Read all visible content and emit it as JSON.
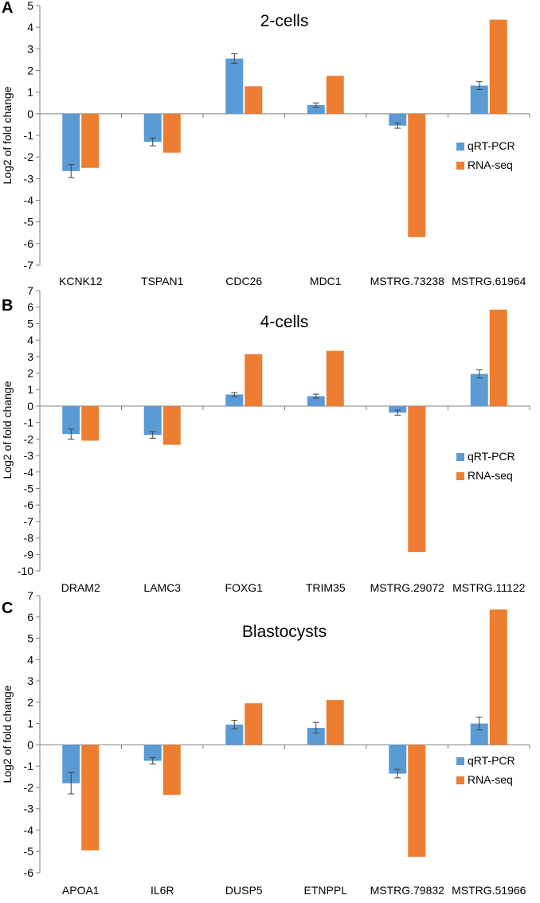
{
  "figure_name": "qRT-PCR vs RNA-seq validation",
  "colors": {
    "qrt": "#5b9bd5",
    "rna": "#ed7d31",
    "axis": "#7f7f7f",
    "err": "#404040"
  },
  "chart_data": [
    {
      "panel": "A",
      "type": "bar",
      "title": "2-cells",
      "ylabel": "Log2 of fold change",
      "ylim": [
        -7,
        5
      ],
      "yticks": [
        "-7",
        "-6",
        "-5",
        "-4",
        "-3",
        "-2",
        "-1",
        "0",
        "1",
        "2",
        "3",
        "4",
        "5"
      ],
      "grid": false,
      "legend_position": "right",
      "categories": [
        "KCNK12",
        "TSPAN1",
        "CDC26",
        "MDC1",
        "MSTRG.73238",
        "MSTRG.61964"
      ],
      "series": [
        {
          "name": "qRT-PCR",
          "color": "#5b9bd5",
          "values": [
            -2.65,
            -1.3,
            2.55,
            0.4,
            -0.55,
            1.3
          ],
          "errors": [
            0.3,
            0.18,
            0.22,
            0.1,
            0.12,
            0.18
          ]
        },
        {
          "name": "RNA-seq",
          "color": "#ed7d31",
          "values": [
            -2.5,
            -1.8,
            1.27,
            1.75,
            -5.7,
            4.35
          ]
        }
      ]
    },
    {
      "panel": "B",
      "type": "bar",
      "title": "4-cells",
      "ylabel": "Log2 of fold change",
      "ylim": [
        -10,
        7
      ],
      "yticks": [
        "-10",
        "-9",
        "-8",
        "-7",
        "-6",
        "-5",
        "-4",
        "-3",
        "-2",
        "-1",
        "0",
        "1",
        "2",
        "3",
        "4",
        "5",
        "6",
        "7"
      ],
      "grid": false,
      "legend_position": "right",
      "categories": [
        "DRAM2",
        "LAMC3",
        "FOXG1",
        "TRIM35",
        "MSTRG.29072",
        "MSTRG.11122"
      ],
      "series": [
        {
          "name": "qRT-PCR",
          "color": "#5b9bd5",
          "values": [
            -1.7,
            -1.75,
            0.7,
            0.6,
            -0.4,
            1.95
          ],
          "errors": [
            0.3,
            0.2,
            0.12,
            0.12,
            0.15,
            0.25
          ]
        },
        {
          "name": "RNA-seq",
          "color": "#ed7d31",
          "values": [
            -2.1,
            -2.35,
            3.15,
            3.35,
            -8.85,
            5.85
          ]
        }
      ]
    },
    {
      "panel": "C",
      "type": "bar",
      "title": "Blastocysts",
      "ylabel": "Log2 of fold change",
      "ylim": [
        -6,
        7
      ],
      "yticks": [
        "-6",
        "-5",
        "-4",
        "-3",
        "-2",
        "-1",
        "0",
        "1",
        "2",
        "3",
        "4",
        "5",
        "6",
        "7"
      ],
      "grid": false,
      "legend_position": "right",
      "categories": [
        "APOA1",
        "IL6R",
        "DUSP5",
        "ETNPPL",
        "MSTRG.79832",
        "MSTRG.51966"
      ],
      "series": [
        {
          "name": "qRT-PCR",
          "color": "#5b9bd5",
          "values": [
            -1.8,
            -0.75,
            0.95,
            0.8,
            -1.35,
            1.0
          ],
          "errors": [
            0.5,
            0.15,
            0.2,
            0.25,
            0.2,
            0.3
          ]
        },
        {
          "name": "RNA-seq",
          "color": "#ed7d31",
          "values": [
            -4.95,
            -2.35,
            1.95,
            2.1,
            -5.25,
            6.35
          ]
        }
      ]
    }
  ]
}
